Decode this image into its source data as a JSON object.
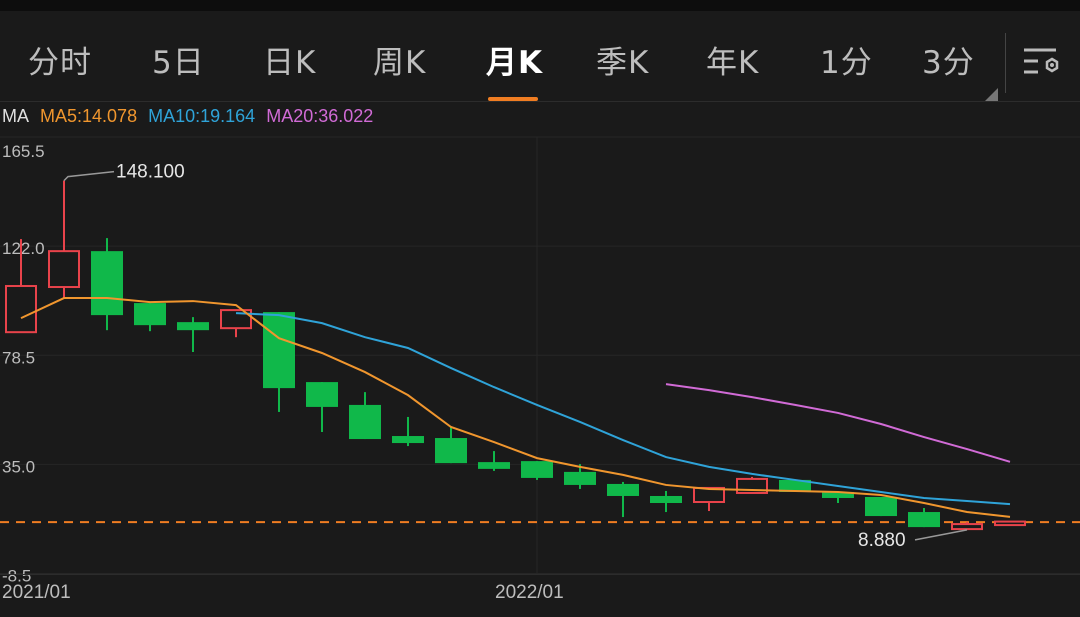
{
  "tabs": [
    {
      "label": "分时",
      "active": false
    },
    {
      "label": "5日",
      "active": false
    },
    {
      "label": "日K",
      "active": false
    },
    {
      "label": "周K",
      "active": false
    },
    {
      "label": "月K",
      "active": true
    },
    {
      "label": "季K",
      "active": false
    },
    {
      "label": "年K",
      "active": false
    },
    {
      "label": "1分",
      "active": false
    },
    {
      "label": "3分",
      "active": false
    }
  ],
  "settings_icon": "chart-settings-icon",
  "legend": {
    "title": "MA",
    "ma5": "MA5:14.078",
    "ma10": "MA10:19.164",
    "ma20": "MA20:36.022"
  },
  "colors": {
    "up": "#e8434b",
    "down": "#10b84a",
    "ma5": "#f0962e",
    "ma10": "#2fa3d8",
    "ma20": "#d16bd6",
    "accent": "#f07d22",
    "price_line": "#f07d22"
  },
  "chart_data": {
    "type": "candlestick",
    "ylim": [
      -8.5,
      165.5
    ],
    "yticks": [
      "165.5",
      "122.0",
      "78.5",
      "35.0",
      "-8.5"
    ],
    "ytick_values": [
      165.5,
      122.0,
      78.5,
      35.0,
      -8.5
    ],
    "xticks": [
      {
        "label": "2021/01",
        "index": 0
      },
      {
        "label": "2022/01",
        "index": 12
      }
    ],
    "grid": true,
    "candles": [
      {
        "o": 87.7,
        "h": 124.8,
        "l": 87.7,
        "c": 106.1
      },
      {
        "o": 105.7,
        "h": 148.1,
        "l": 101.3,
        "c": 120.0
      },
      {
        "o": 120.0,
        "h": 125.2,
        "l": 88.5,
        "c": 94.5
      },
      {
        "o": 99.3,
        "h": 99.3,
        "l": 88.1,
        "c": 90.5
      },
      {
        "o": 91.7,
        "h": 93.7,
        "l": 79.8,
        "c": 88.5
      },
      {
        "o": 89.3,
        "h": 96.5,
        "l": 85.7,
        "c": 96.5
      },
      {
        "o": 95.7,
        "h": 95.7,
        "l": 55.9,
        "c": 65.4
      },
      {
        "o": 67.8,
        "h": 67.8,
        "l": 47.9,
        "c": 57.9
      },
      {
        "o": 58.7,
        "h": 63.8,
        "l": 45.1,
        "c": 45.1
      },
      {
        "o": 46.3,
        "h": 53.9,
        "l": 42.3,
        "c": 43.5
      },
      {
        "o": 45.5,
        "h": 49.9,
        "l": 35.5,
        "c": 35.5
      },
      {
        "o": 35.9,
        "h": 40.3,
        "l": 32.4,
        "c": 33.2
      },
      {
        "o": 36.3,
        "h": 36.3,
        "l": 28.8,
        "c": 29.6
      },
      {
        "o": 32.0,
        "h": 35.1,
        "l": 25.2,
        "c": 26.8
      },
      {
        "o": 27.2,
        "h": 28.0,
        "l": 14.0,
        "c": 22.4
      },
      {
        "o": 22.4,
        "h": 24.4,
        "l": 16.0,
        "c": 19.6
      },
      {
        "o": 20.0,
        "h": 25.6,
        "l": 16.4,
        "c": 25.6
      },
      {
        "o": 23.6,
        "h": 30.0,
        "l": 23.6,
        "c": 29.2
      },
      {
        "o": 28.8,
        "h": 28.8,
        "l": 24.0,
        "c": 24.0
      },
      {
        "o": 24.0,
        "h": 24.0,
        "l": 19.6,
        "c": 21.6
      },
      {
        "o": 22.0,
        "h": 22.0,
        "l": 14.4,
        "c": 14.4
      },
      {
        "o": 16.0,
        "h": 17.6,
        "l": 10.0,
        "c": 10.0
      },
      {
        "o": 9.2,
        "h": 12.0,
        "l": 8.88,
        "c": 11.2
      },
      {
        "o": 10.8,
        "h": 12.4,
        "l": 10.8,
        "c": 12.2
      }
    ],
    "ma5": [
      93.3,
      101.3,
      101.3,
      99.7,
      100.1,
      98.5,
      85.3,
      79.4,
      71.8,
      62.6,
      49.9,
      43.9,
      37.5,
      34.0,
      30.8,
      26.8,
      25.2,
      24.8,
      24.4,
      24.0,
      22.8,
      19.6,
      16.0,
      14.078
    ],
    "ma10": [
      null,
      null,
      null,
      null,
      null,
      95.3,
      94.5,
      91.3,
      85.7,
      81.4,
      73.4,
      65.8,
      58.7,
      51.9,
      44.7,
      37.9,
      34.0,
      31.2,
      28.8,
      26.4,
      24.0,
      21.6,
      20.4,
      19.164
    ],
    "ma20": [
      null,
      null,
      null,
      null,
      null,
      null,
      null,
      null,
      null,
      null,
      null,
      null,
      null,
      null,
      null,
      67.0,
      64.6,
      61.8,
      58.7,
      55.5,
      51.1,
      45.9,
      41.1,
      36.022
    ],
    "current_price": 12.0,
    "annotations": [
      {
        "label": "148.100",
        "index": 1,
        "value": 148.1
      },
      {
        "label": "8.880",
        "index": 22,
        "value": 8.88
      }
    ]
  }
}
